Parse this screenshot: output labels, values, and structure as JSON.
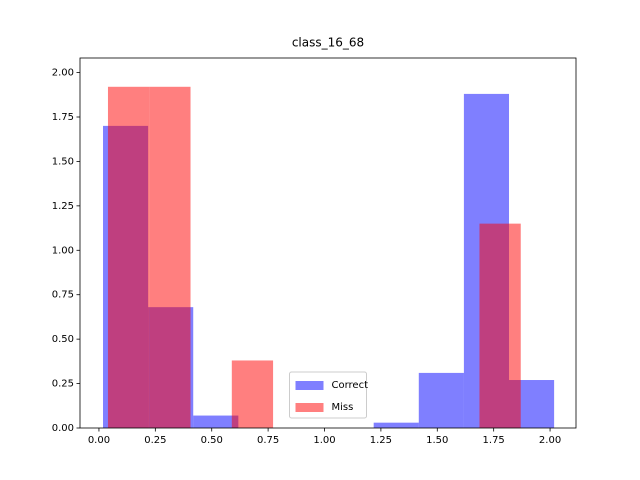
{
  "chart_data": {
    "type": "histogram",
    "title": "class_16_68",
    "series": [
      {
        "name": "Correct",
        "color": "#0000ff",
        "bins": [
          0.018,
          0.218,
          0.418,
          0.618,
          0.818,
          1.018,
          1.218,
          1.418,
          1.618,
          1.818,
          2.018
        ],
        "values": [
          1.7,
          0.68,
          0.07,
          0,
          0,
          0,
          0.03,
          0.31,
          1.88,
          0.27
        ]
      },
      {
        "name": "Miss",
        "color": "#ff0000",
        "bins": [
          0.04,
          0.223,
          0.406,
          0.589,
          0.772,
          0.955,
          1.138,
          1.321,
          1.504,
          1.687,
          1.87
        ],
        "values": [
          1.92,
          1.92,
          0,
          0.38,
          0,
          0,
          0,
          0,
          0,
          1.15
        ]
      }
    ],
    "xlim": [
      -0.084,
      2.115
    ],
    "ylim": [
      0,
      2.082
    ],
    "xticks": [
      {
        "value": 0,
        "label": "0.00"
      },
      {
        "value": 0.25,
        "label": "0.25"
      },
      {
        "value": 0.5,
        "label": "0.50"
      },
      {
        "value": 0.75,
        "label": "0.75"
      },
      {
        "value": 1,
        "label": "1.00"
      },
      {
        "value": 1.25,
        "label": "1.25"
      },
      {
        "value": 1.5,
        "label": "1.50"
      },
      {
        "value": 1.75,
        "label": "1.75"
      },
      {
        "value": 2,
        "label": "2.00"
      }
    ],
    "yticks": [
      {
        "value": 0,
        "label": "0.00"
      },
      {
        "value": 0.25,
        "label": "0.25"
      },
      {
        "value": 0.5,
        "label": "0.50"
      },
      {
        "value": 0.75,
        "label": "0.75"
      },
      {
        "value": 1,
        "label": "1.00"
      },
      {
        "value": 1.25,
        "label": "1.25"
      },
      {
        "value": 1.5,
        "label": "1.50"
      },
      {
        "value": 1.75,
        "label": "1.75"
      },
      {
        "value": 2,
        "label": "2.00"
      }
    ],
    "opacity": 0.5,
    "legend": "lower center"
  }
}
